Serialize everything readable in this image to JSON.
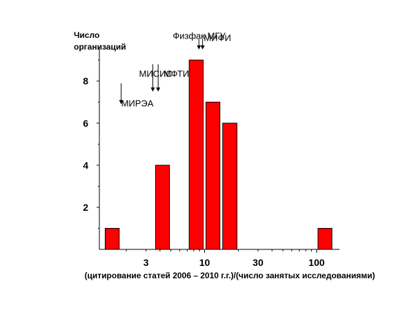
{
  "chart_data": {
    "type": "bar",
    "ylabel_lines": [
      "Число",
      "организаций"
    ],
    "xlabel": "(цитирование статей 2006 – 2010 г.г.)/(число занятых исследованиями)",
    "x_scale": "log",
    "x_ticks": [
      {
        "value": 3,
        "label": "3"
      },
      {
        "value": 10,
        "label": "10"
      },
      {
        "value": 30,
        "label": "30"
      },
      {
        "value": 100,
        "label": "100"
      }
    ],
    "y_ticks": [
      {
        "value": 2,
        "label": "2"
      },
      {
        "value": 4,
        "label": "4"
      },
      {
        "value": 6,
        "label": "6"
      },
      {
        "value": 8,
        "label": "8"
      }
    ],
    "ylim": [
      0,
      9.3
    ],
    "xlim": [
      1.15,
      160
    ],
    "bars": [
      {
        "x0": 1.26,
        "x1": 1.78,
        "value": 1
      },
      {
        "x0": 3.55,
        "x1": 5.0,
        "value": 4
      },
      {
        "x0": 7.08,
        "x1": 10.0,
        "value": 9
      },
      {
        "x0": 10.0,
        "x1": 14.1,
        "value": 7
      },
      {
        "x0": 14.1,
        "x1": 20.0,
        "value": 6
      },
      {
        "x0": 100,
        "x1": 141,
        "value": 1
      }
    ],
    "annotations": [
      {
        "text": "МИРЭА",
        "x": 1.8,
        "text_y": 6.8,
        "arrows": [
          {
            "x": 1.8,
            "y_top": 7.9,
            "y_bottom": 6.9
          }
        ]
      },
      {
        "text": "МИСИС",
        "x": 2.6,
        "text_y": 8.2,
        "arrows": [
          {
            "x": 3.45,
            "y_top": 8.8,
            "y_bottom": 7.5
          }
        ]
      },
      {
        "text": "МФТИ",
        "x": 4.3,
        "text_y": 8.2,
        "arrows": [
          {
            "x": 3.85,
            "y_top": 8.8,
            "y_bottom": 7.5
          }
        ]
      },
      {
        "text": "Физфак МГУ",
        "x": 5.2,
        "text_y": 10.0,
        "arrows": [
          {
            "x": 8.9,
            "y_top": 10.0,
            "y_bottom": 9.5
          },
          {
            "x": 9.6,
            "y_top": 10.0,
            "y_bottom": 9.5
          }
        ]
      },
      {
        "text": "МИФИ",
        "x": 9.85,
        "text_y": 9.9,
        "arrows": []
      }
    ],
    "grid": false,
    "legend": "none"
  }
}
